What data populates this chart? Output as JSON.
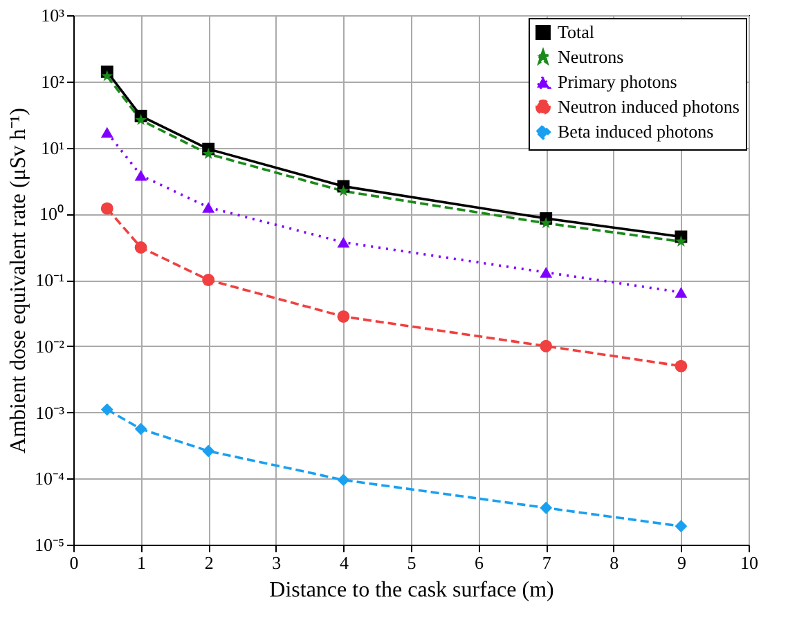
{
  "chart_data": {
    "type": "line",
    "xlabel": "Distance to the cask surface (m)",
    "ylabel": "Ambient dose equivalent rate (μSv h⁻¹)",
    "x": [
      0.5,
      1,
      2,
      4,
      7,
      9
    ],
    "series": [
      {
        "name": "Total",
        "color": "#000000",
        "marker": "square",
        "line_style": "solid",
        "values": [
          140,
          30,
          9.5,
          2.6,
          0.85,
          0.45
        ]
      },
      {
        "name": "Neutrons",
        "color": "#1a8a1a",
        "marker": "star",
        "line_style": "dashed",
        "values": [
          120,
          26,
          8,
          2.2,
          0.72,
          0.38
        ]
      },
      {
        "name": "Primary photons",
        "color": "#8000ff",
        "marker": "triangle",
        "line_style": "dotted",
        "values": [
          17,
          3.8,
          1.25,
          0.37,
          0.13,
          0.065
        ]
      },
      {
        "name": "Neutron induced photons",
        "color": "#f04040",
        "marker": "circle",
        "line_style": "dashed",
        "values": [
          1.2,
          0.31,
          0.1,
          0.028,
          0.01,
          0.005
        ]
      },
      {
        "name": "Beta induced photons",
        "color": "#1aa0f0",
        "marker": "diamond",
        "line_style": "dashed",
        "values": [
          0.0011,
          0.00056,
          0.00026,
          9.5e-05,
          3.6e-05,
          1.9e-05
        ]
      }
    ],
    "log": "y",
    "grid": true,
    "legend": "top right",
    "xlim": [
      0,
      10
    ],
    "xticks": [
      0,
      1,
      2,
      3,
      4,
      5,
      6,
      7,
      8,
      9,
      10
    ],
    "ylim": [
      1e-05,
      1000
    ],
    "yticks": [
      {
        "value": 1e-05,
        "label": "10⁻⁵"
      },
      {
        "value": 0.0001,
        "label": "10⁻⁴"
      },
      {
        "value": 0.001,
        "label": "10⁻³"
      },
      {
        "value": 0.01,
        "label": "10⁻²"
      },
      {
        "value": 0.1,
        "label": "10⁻¹"
      },
      {
        "value": 1,
        "label": "10⁰"
      },
      {
        "value": 10,
        "label": "10¹"
      },
      {
        "value": 100,
        "label": "10²"
      },
      {
        "value": 1000,
        "label": "10³"
      }
    ]
  }
}
